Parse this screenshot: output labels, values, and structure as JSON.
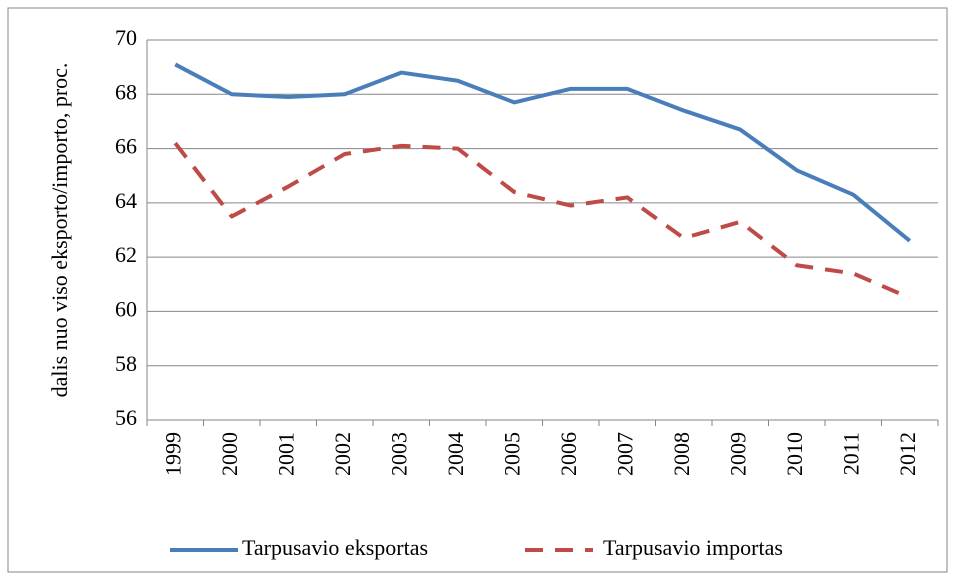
{
  "chart_data": {
    "type": "line",
    "y_label": "dalis nuo viso eksporto/importo, proc.",
    "categories": [
      "1999",
      "2000",
      "2001",
      "2002",
      "2003",
      "2004",
      "2005",
      "2006",
      "2007",
      "2008",
      "2009",
      "2010",
      "2011",
      "2012"
    ],
    "series": [
      {
        "name": "Tarpusavio eksportas",
        "color": "#4a7ebb",
        "line_style": "solid",
        "values": [
          69.1,
          68.0,
          67.9,
          68.0,
          68.8,
          68.5,
          67.7,
          68.2,
          68.2,
          67.4,
          66.7,
          65.2,
          64.3,
          62.6
        ]
      },
      {
        "name": "Tarpusavio importas",
        "color": "#be4b48",
        "line_style": "dashed",
        "values": [
          66.2,
          63.5,
          64.6,
          65.8,
          66.1,
          66.0,
          64.4,
          63.9,
          64.2,
          62.7,
          63.3,
          61.7,
          61.4,
          60.5
        ]
      }
    ],
    "ylim": [
      56,
      70
    ],
    "yticks": [
      56,
      58,
      60,
      62,
      64,
      66,
      68,
      70
    ],
    "grid": true,
    "legend": "bottom"
  }
}
